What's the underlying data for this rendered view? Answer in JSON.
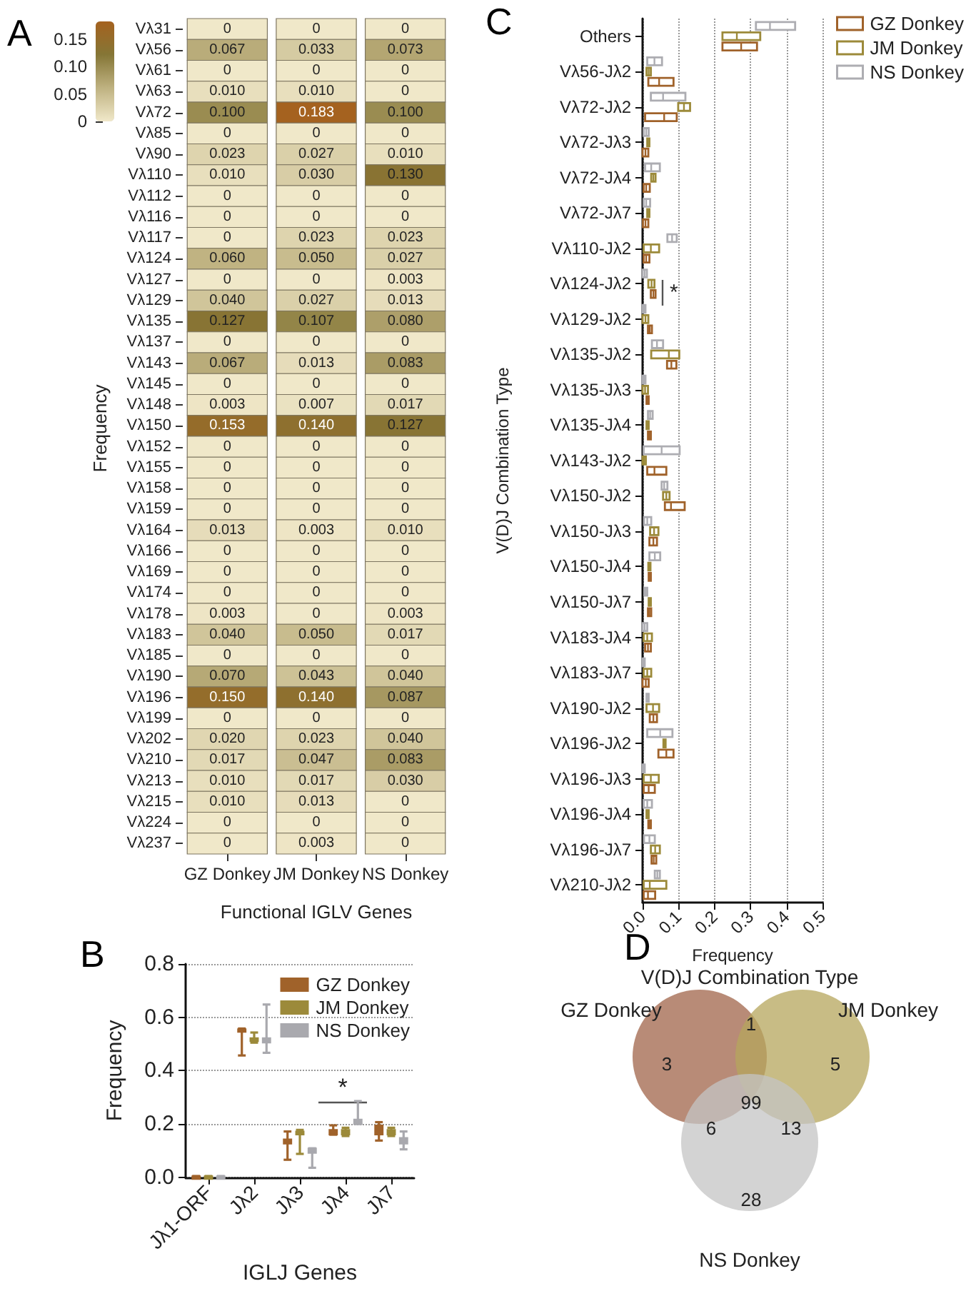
{
  "chart_data": [
    {
      "type": "heatmap",
      "annotations": [
        "A"
      ],
      "xlabel": "Functional IGLV Genes",
      "clabel": "Frequency",
      "categories": [
        "GZ Donkey",
        "JM Donkey",
        "NS Donkey"
      ],
      "y_categories": [
        "Vλ31",
        "Vλ56",
        "Vλ61",
        "Vλ63",
        "Vλ72",
        "Vλ85",
        "Vλ90",
        "Vλ110",
        "Vλ112",
        "Vλ116",
        "Vλ117",
        "Vλ124",
        "Vλ127",
        "Vλ129",
        "Vλ135",
        "Vλ137",
        "Vλ143",
        "Vλ145",
        "Vλ148",
        "Vλ150",
        "Vλ152",
        "Vλ155",
        "Vλ158",
        "Vλ159",
        "Vλ164",
        "Vλ166",
        "Vλ169",
        "Vλ174",
        "Vλ178",
        "Vλ183",
        "Vλ185",
        "Vλ190",
        "Vλ196",
        "Vλ199",
        "Vλ202",
        "Vλ210",
        "Vλ213",
        "Vλ215",
        "Vλ224",
        "Vλ237"
      ],
      "cells": [
        [
          0,
          0,
          0
        ],
        [
          0.067,
          0.033,
          0.073
        ],
        [
          0,
          0,
          0
        ],
        [
          0.01,
          0.01,
          0
        ],
        [
          0.1,
          0.183,
          0.1
        ],
        [
          0,
          0,
          0
        ],
        [
          0.023,
          0.027,
          0.01
        ],
        [
          0.01,
          0.03,
          0.13
        ],
        [
          0,
          0,
          0
        ],
        [
          0,
          0,
          0
        ],
        [
          0,
          0.023,
          0.023
        ],
        [
          0.06,
          0.05,
          0.027
        ],
        [
          0,
          0,
          0.003
        ],
        [
          0.04,
          0.027,
          0.013
        ],
        [
          0.127,
          0.107,
          0.08
        ],
        [
          0,
          0,
          0
        ],
        [
          0.067,
          0.013,
          0.083
        ],
        [
          0,
          0,
          0
        ],
        [
          0.003,
          0.007,
          0.017
        ],
        [
          0.153,
          0.14,
          0.127
        ],
        [
          0,
          0,
          0
        ],
        [
          0,
          0,
          0
        ],
        [
          0,
          0,
          0
        ],
        [
          0,
          0,
          0
        ],
        [
          0.013,
          0.003,
          0.01
        ],
        [
          0,
          0,
          0
        ],
        [
          0,
          0,
          0
        ],
        [
          0,
          0,
          0
        ],
        [
          0.003,
          0,
          0.003
        ],
        [
          0.04,
          0.05,
          0.017
        ],
        [
          0,
          0,
          0
        ],
        [
          0.07,
          0.043,
          0.04
        ],
        [
          0.15,
          0.14,
          0.087
        ],
        [
          0,
          0,
          0
        ],
        [
          0.02,
          0.023,
          0.04
        ],
        [
          0.017,
          0.047,
          0.083
        ],
        [
          0.01,
          0.017,
          0.03
        ],
        [
          0.01,
          0.013,
          0
        ],
        [
          0,
          0,
          0
        ],
        [
          0,
          0.003,
          0
        ]
      ],
      "cell_labels": [
        [
          "0",
          "0",
          "0"
        ],
        [
          "0.067",
          "0.033",
          "0.073"
        ],
        [
          "0",
          "0",
          "0"
        ],
        [
          "0.010",
          "0.010",
          "0"
        ],
        [
          "0.100",
          "0.183",
          "0.100"
        ],
        [
          "0",
          "0",
          "0"
        ],
        [
          "0.023",
          "0.027",
          "0.010"
        ],
        [
          "0.010",
          "0.030",
          "0.130"
        ],
        [
          "0",
          "0",
          "0"
        ],
        [
          "0",
          "0",
          "0"
        ],
        [
          "0",
          "0.023",
          "0.023"
        ],
        [
          "0.060",
          "0.050",
          "0.027"
        ],
        [
          "0",
          "0",
          "0.003"
        ],
        [
          "0.040",
          "0.027",
          "0.013"
        ],
        [
          "0.127",
          "0.107",
          "0.080"
        ],
        [
          "0",
          "0",
          "0"
        ],
        [
          "0.067",
          "0.013",
          "0.083"
        ],
        [
          "0",
          "0",
          "0"
        ],
        [
          "0.003",
          "0.007",
          "0.017"
        ],
        [
          "0.153",
          "0.140",
          "0.127"
        ],
        [
          "0",
          "0",
          "0"
        ],
        [
          "0",
          "0",
          "0"
        ],
        [
          "0",
          "0",
          "0"
        ],
        [
          "0",
          "0",
          "0"
        ],
        [
          "0.013",
          "0.003",
          "0.010"
        ],
        [
          "0",
          "0",
          "0"
        ],
        [
          "0",
          "0",
          "0"
        ],
        [
          "0",
          "0",
          "0"
        ],
        [
          "0.003",
          "0",
          "0.003"
        ],
        [
          "0.040",
          "0.050",
          "0.017"
        ],
        [
          "0",
          "0",
          "0"
        ],
        [
          "0.070",
          "0.043",
          "0.040"
        ],
        [
          "0.150",
          "0.140",
          "0.087"
        ],
        [
          "0",
          "0",
          "0"
        ],
        [
          "0.020",
          "0.023",
          "0.040"
        ],
        [
          "0.017",
          "0.047",
          "0.083"
        ],
        [
          "0.010",
          "0.017",
          "0.030"
        ],
        [
          "0.010",
          "0.013",
          "0"
        ],
        [
          "0",
          "0",
          "0"
        ],
        [
          "0",
          "0.003",
          "0"
        ]
      ],
      "clim": [
        0,
        0.183
      ],
      "cticks": [
        0,
        0.05,
        {
          "value": 0.1,
          "label": "0.10"
        },
        0.15
      ],
      "colors": [
        "#f0e8c9",
        "#bfb281",
        "#857636",
        "#a5621f"
      ]
    },
    {
      "type": "box",
      "annotations": [
        "B",
        "*"
      ],
      "xlabel": "IGLJ Genes",
      "ylabel": "Frequency",
      "categories": [
        "Jλ1-ORF",
        "Jλ2",
        "Jλ3",
        "Jλ4",
        "Jλ7"
      ],
      "ylim": [
        0,
        0.8
      ],
      "yticks": [
        {
          "value": 0,
          "label": "0.0"
        },
        0.2,
        0.4,
        0.6,
        0.8
      ],
      "grid": "y",
      "legend": "top right",
      "series": [
        {
          "name": "GZ Donkey",
          "color": "#a0622a",
          "boxes": [
            {
              "low": 0,
              "q1": 0,
              "median": 0.002,
              "q3": 0.004,
              "high": 0.005
            },
            {
              "low": 0.457,
              "q1": 0.545,
              "median": 0.55,
              "q3": 0.556,
              "high": 0.558
            },
            {
              "low": 0.066,
              "q1": 0.126,
              "median": 0.135,
              "q3": 0.143,
              "high": 0.172
            },
            {
              "low": 0.16,
              "q1": 0.16,
              "median": 0.168,
              "q3": 0.178,
              "high": 0.195
            },
            {
              "low": 0.138,
              "q1": 0.16,
              "median": 0.18,
              "q3": 0.195,
              "high": 0.207
            }
          ]
        },
        {
          "name": "JM Donkey",
          "color": "#9c8a3a",
          "boxes": [
            {
              "low": 0,
              "q1": 0,
              "median": 0.002,
              "q3": 0.004,
              "high": 0.005
            },
            {
              "low": 0.505,
              "q1": 0.51,
              "median": 0.515,
              "q3": 0.522,
              "high": 0.543
            },
            {
              "low": 0.088,
              "q1": 0.16,
              "median": 0.165,
              "q3": 0.172,
              "high": 0.178
            },
            {
              "low": 0.155,
              "q1": 0.16,
              "median": 0.166,
              "q3": 0.178,
              "high": 0.186
            },
            {
              "low": 0.155,
              "q1": 0.16,
              "median": 0.168,
              "q3": 0.178,
              "high": 0.186
            }
          ]
        },
        {
          "name": "NS Donkey",
          "color": "#a9a9ae",
          "boxes": [
            {
              "low": 0,
              "q1": 0,
              "median": 0.002,
              "q3": 0.004,
              "high": 0.005
            },
            {
              "low": 0.467,
              "q1": 0.505,
              "median": 0.515,
              "q3": 0.522,
              "high": 0.648
            },
            {
              "low": 0.036,
              "q1": 0.091,
              "median": 0.1,
              "q3": 0.109,
              "high": 0.109
            },
            {
              "low": 0.2,
              "q1": 0.2,
              "median": 0.21,
              "q3": 0.217,
              "high": 0.286
            },
            {
              "low": 0.105,
              "q1": 0.126,
              "median": 0.135,
              "q3": 0.148,
              "high": 0.172
            }
          ]
        }
      ]
    },
    {
      "type": "box",
      "orientation": "horizontal",
      "annotations": [
        "C",
        "*"
      ],
      "xlabel": "Frequency",
      "ylabel": "V(D)J Combination Type",
      "categories": [
        "Others",
        "Vλ56-Jλ2",
        "Vλ72-Jλ2",
        "Vλ72-Jλ3",
        "Vλ72-Jλ4",
        "Vλ72-Jλ7",
        "Vλ110-Jλ2",
        "Vλ124-Jλ2",
        "Vλ129-Jλ2",
        "Vλ135-Jλ2",
        "Vλ135-Jλ3",
        "Vλ135-Jλ4",
        "Vλ143-Jλ2",
        "Vλ150-Jλ2",
        "Vλ150-Jλ3",
        "Vλ150-Jλ4",
        "Vλ150-Jλ7",
        "Vλ183-Jλ4",
        "Vλ183-Jλ7",
        "Vλ190-Jλ2",
        "Vλ196-Jλ2",
        "Vλ196-Jλ3",
        "Vλ196-Jλ4",
        "Vλ196-Jλ7",
        "Vλ210-Jλ2"
      ],
      "xlim": [
        0,
        0.5
      ],
      "xticks": [
        {
          "value": 0,
          "label": "0.0"
        },
        0.1,
        0.2,
        0.3,
        0.4,
        0.5
      ],
      "grid": "x",
      "legend": "top right",
      "series": [
        {
          "name": "GZ Donkey",
          "color": "#a0622a",
          "boxes": [
            {
              "low": 0.222,
              "q1": 0.222,
              "median": 0.274,
              "q3": 0.318,
              "high": 0.318
            },
            {
              "low": 0.016,
              "q1": 0.016,
              "median": 0.046,
              "q3": 0.086,
              "high": 0.086
            },
            {
              "low": 0.007,
              "q1": 0.007,
              "median": 0.06,
              "q3": 0.095,
              "high": 0.095
            },
            {
              "low": 0,
              "q1": 0,
              "median": 0.008,
              "q3": 0.016,
              "high": 0.016
            },
            {
              "low": 0.003,
              "q1": 0.003,
              "median": 0.01,
              "q3": 0.02,
              "high": 0.02
            },
            {
              "low": 0.001,
              "q1": 0.001,
              "median": 0.008,
              "q3": 0.016,
              "high": 0.016
            },
            {
              "low": 0.003,
              "q1": 0.003,
              "median": 0.01,
              "q3": 0.019,
              "high": 0.019
            },
            {
              "low": 0.023,
              "q1": 0.023,
              "median": 0.03,
              "q3": 0.036,
              "high": 0.036
            },
            {
              "low": 0.015,
              "q1": 0.015,
              "median": 0.02,
              "q3": 0.026,
              "high": 0.026
            },
            {
              "low": 0.068,
              "q1": 0.068,
              "median": 0.08,
              "q3": 0.094,
              "high": 0.094
            },
            {
              "low": 0.011,
              "q1": 0.011,
              "median": 0.013,
              "q3": 0.015,
              "high": 0.015
            },
            {
              "low": 0.015,
              "q1": 0.015,
              "median": 0.019,
              "q3": 0.023,
              "high": 0.023
            },
            {
              "low": 0.013,
              "q1": 0.013,
              "median": 0.033,
              "q3": 0.066,
              "high": 0.066
            },
            {
              "low": 0.062,
              "q1": 0.062,
              "median": 0.079,
              "q3": 0.117,
              "high": 0.117
            },
            {
              "low": 0.019,
              "q1": 0.019,
              "median": 0.03,
              "q3": 0.04,
              "high": 0.04
            },
            {
              "low": 0.017,
              "q1": 0.017,
              "median": 0.019,
              "q3": 0.021,
              "high": 0.021
            },
            {
              "low": 0.015,
              "q1": 0.015,
              "median": 0.019,
              "q3": 0.024,
              "high": 0.024
            },
            {
              "low": 0.007,
              "q1": 0.007,
              "median": 0.015,
              "q3": 0.023,
              "high": 0.023
            },
            {
              "low": 0,
              "q1": 0,
              "median": 0.009,
              "q3": 0.017,
              "high": 0.017
            },
            {
              "low": 0.02,
              "q1": 0.02,
              "median": 0.03,
              "q3": 0.04,
              "high": 0.04
            },
            {
              "low": 0.044,
              "q1": 0.044,
              "median": 0.066,
              "q3": 0.086,
              "high": 0.086
            },
            {
              "low": 0.003,
              "q1": 0.003,
              "median": 0.017,
              "q3": 0.034,
              "high": 0.034
            },
            {
              "low": 0.016,
              "q1": 0.016,
              "median": 0.019,
              "q3": 0.023,
              "high": 0.023
            },
            {
              "low": 0.025,
              "q1": 0.025,
              "median": 0.031,
              "q3": 0.038,
              "high": 0.038
            },
            {
              "low": 0.003,
              "q1": 0.003,
              "median": 0.015,
              "q3": 0.035,
              "high": 0.035
            }
          ]
        },
        {
          "name": "JM Donkey",
          "color": "#9c8a3a",
          "boxes": [
            {
              "low": 0.222,
              "q1": 0.222,
              "median": 0.262,
              "q3": 0.327,
              "high": 0.327
            },
            {
              "low": 0.011,
              "q1": 0.011,
              "median": 0.017,
              "q3": 0.023,
              "high": 0.023
            },
            {
              "low": 0.099,
              "q1": 0.099,
              "median": 0.115,
              "q3": 0.132,
              "high": 0.132
            },
            {
              "low": 0.013,
              "q1": 0.013,
              "median": 0.015,
              "q3": 0.017,
              "high": 0.017
            },
            {
              "low": 0.024,
              "q1": 0.024,
              "median": 0.03,
              "q3": 0.036,
              "high": 0.036
            },
            {
              "low": 0.013,
              "q1": 0.013,
              "median": 0.016,
              "q3": 0.019,
              "high": 0.019
            },
            {
              "low": 0.003,
              "q1": 0.003,
              "median": 0.023,
              "q3": 0.046,
              "high": 0.046
            },
            {
              "low": 0.016,
              "q1": 0.016,
              "median": 0.025,
              "q3": 0.033,
              "high": 0.033
            },
            {
              "low": 0,
              "q1": 0,
              "median": 0.008,
              "q3": 0.016,
              "high": 0.016
            },
            {
              "low": 0.024,
              "q1": 0.024,
              "median": 0.073,
              "q3": 0.102,
              "high": 0.102
            },
            {
              "low": 0,
              "q1": 0,
              "median": 0.007,
              "q3": 0.015,
              "high": 0.015
            },
            {
              "low": 0.011,
              "q1": 0.011,
              "median": 0.014,
              "q3": 0.017,
              "high": 0.017
            },
            {
              "low": 0,
              "q1": 0,
              "median": 0.004,
              "q3": 0.009,
              "high": 0.009
            },
            {
              "low": 0.057,
              "q1": 0.057,
              "median": 0.066,
              "q3": 0.075,
              "high": 0.075
            },
            {
              "low": 0.021,
              "q1": 0.021,
              "median": 0.032,
              "q3": 0.044,
              "high": 0.044
            },
            {
              "low": 0.016,
              "q1": 0.016,
              "median": 0.018,
              "q3": 0.02,
              "high": 0.02
            },
            {
              "low": 0.017,
              "q1": 0.017,
              "median": 0.02,
              "q3": 0.023,
              "high": 0.023
            },
            {
              "low": 0.003,
              "q1": 0.003,
              "median": 0.013,
              "q3": 0.026,
              "high": 0.026
            },
            {
              "low": 0.003,
              "q1": 0.003,
              "median": 0.013,
              "q3": 0.024,
              "high": 0.024
            },
            {
              "low": 0.011,
              "q1": 0.011,
              "median": 0.029,
              "q3": 0.046,
              "high": 0.046
            },
            {
              "low": 0.058,
              "q1": 0.058,
              "median": 0.061,
              "q3": 0.064,
              "high": 0.064
            },
            {
              "low": 0.003,
              "q1": 0.003,
              "median": 0.023,
              "q3": 0.045,
              "high": 0.045
            },
            {
              "low": 0.011,
              "q1": 0.011,
              "median": 0.013,
              "q3": 0.016,
              "high": 0.016
            },
            {
              "low": 0.023,
              "q1": 0.023,
              "median": 0.035,
              "q3": 0.048,
              "high": 0.048
            },
            {
              "low": 0.003,
              "q1": 0.003,
              "median": 0.02,
              "q3": 0.066,
              "high": 0.066
            }
          ]
        },
        {
          "name": "NS Donkey",
          "color": "#adadb2",
          "boxes": [
            {
              "low": 0.315,
              "q1": 0.315,
              "median": 0.354,
              "q3": 0.424,
              "high": 0.424
            },
            {
              "low": 0.013,
              "q1": 0.013,
              "median": 0.033,
              "q3": 0.054,
              "high": 0.054
            },
            {
              "low": 0.023,
              "q1": 0.023,
              "median": 0.057,
              "q3": 0.119,
              "high": 0.119
            },
            {
              "low": 0.003,
              "q1": 0.003,
              "median": 0.01,
              "q3": 0.017,
              "high": 0.017
            },
            {
              "low": 0.007,
              "q1": 0.007,
              "median": 0.024,
              "q3": 0.048,
              "high": 0.048
            },
            {
              "low": 0.003,
              "q1": 0.003,
              "median": 0.01,
              "q3": 0.021,
              "high": 0.021
            },
            {
              "low": 0.069,
              "q1": 0.069,
              "median": 0.082,
              "q3": 0.095,
              "high": 0.095
            },
            {
              "low": 0,
              "q1": 0,
              "median": 0.006,
              "q3": 0.012,
              "high": 0.012
            },
            {
              "low": 0,
              "q1": 0,
              "median": 0.004,
              "q3": 0.008,
              "high": 0.008
            },
            {
              "low": 0.026,
              "q1": 0.026,
              "median": 0.04,
              "q3": 0.057,
              "high": 0.057
            },
            {
              "low": 0,
              "q1": 0,
              "median": 0.004,
              "q3": 0.008,
              "high": 0.008
            },
            {
              "low": 0.015,
              "q1": 0.015,
              "median": 0.021,
              "q3": 0.028,
              "high": 0.028
            },
            {
              "low": 0.003,
              "q1": 0.003,
              "median": 0.053,
              "q3": 0.103,
              "high": 0.103
            },
            {
              "low": 0.053,
              "q1": 0.053,
              "median": 0.06,
              "q3": 0.069,
              "high": 0.069
            },
            {
              "low": 0.004,
              "q1": 0.004,
              "median": 0.013,
              "q3": 0.024,
              "high": 0.024
            },
            {
              "low": 0.019,
              "q1": 0.019,
              "median": 0.034,
              "q3": 0.049,
              "high": 0.049
            },
            {
              "low": 0.005,
              "q1": 0.005,
              "median": 0.009,
              "q3": 0.013,
              "high": 0.013
            },
            {
              "low": 0,
              "q1": 0,
              "median": 0.006,
              "q3": 0.013,
              "high": 0.013
            },
            {
              "low": 0,
              "q1": 0,
              "median": 0.002,
              "q3": 0.004,
              "high": 0.004
            },
            {
              "low": 0.011,
              "q1": 0.011,
              "median": 0.013,
              "q3": 0.016,
              "high": 0.016
            },
            {
              "low": 0.013,
              "q1": 0.013,
              "median": 0.049,
              "q3": 0.083,
              "high": 0.083
            },
            {
              "low": 0,
              "q1": 0,
              "median": 0.002,
              "q3": 0.004,
              "high": 0.004
            },
            {
              "low": 0.003,
              "q1": 0.003,
              "median": 0.013,
              "q3": 0.026,
              "high": 0.026
            },
            {
              "low": 0.004,
              "q1": 0.004,
              "median": 0.019,
              "q3": 0.034,
              "high": 0.034
            },
            {
              "low": 0.034,
              "q1": 0.034,
              "median": 0.041,
              "q3": 0.048,
              "high": 0.048
            }
          ]
        }
      ]
    },
    {
      "type": "other",
      "title": "V(D)J Combination Type",
      "annotations": [
        "D",
        "3",
        "1",
        "5",
        "99",
        "6",
        "13",
        "28"
      ],
      "categories": [
        "GZ Donkey",
        "JM Donkey",
        "NS Donkey"
      ],
      "colors": [
        "#a0644a",
        "#b5a55c",
        "#c4c4c4"
      ]
    }
  ]
}
